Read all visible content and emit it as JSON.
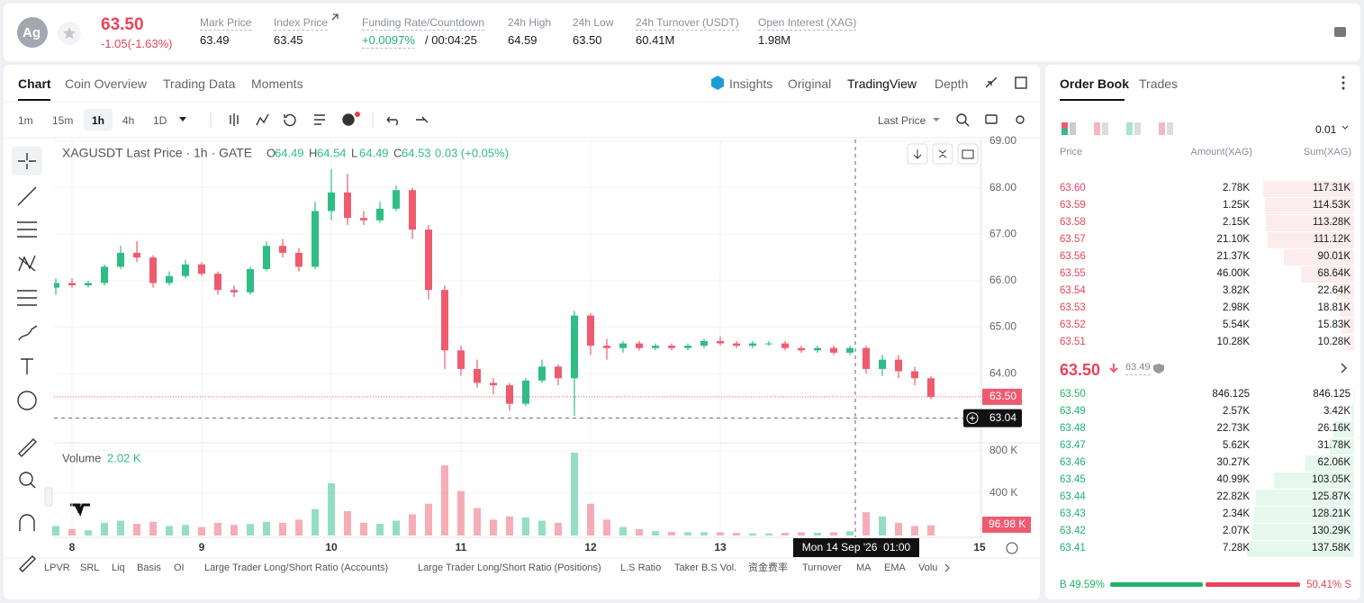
{
  "header": {
    "symbol_icon": "Ag",
    "price": "63.50",
    "change": "-1.05(-1.63%)",
    "stats": [
      {
        "label": "Mark Price",
        "value": "63.49"
      },
      {
        "label": "Index Price",
        "value": "63.45"
      },
      {
        "label": "Funding Rate/Countdown",
        "value": "+0.0097%",
        "extra": "/ 00:04:25"
      },
      {
        "label": "24h High",
        "value": "64.59"
      },
      {
        "label": "24h Low",
        "value": "63.50"
      },
      {
        "label": "24h Turnover (USDT)",
        "value": "60.41M"
      },
      {
        "label": "Open Interest (XAG)",
        "value": "1.98M"
      }
    ]
  },
  "tabs": [
    "Chart",
    "Coin Overview",
    "Trading Data",
    "Moments"
  ],
  "view_tabs": [
    "Insights",
    "Original",
    "TradingView",
    "Depth"
  ],
  "intervals": [
    "1m",
    "15m",
    "1h",
    "4h",
    "1D"
  ],
  "price_type": "Last Price",
  "chart_data": {
    "type": "candlestick",
    "title": "XAGUSDT Last Price · 1h · GATE",
    "legend": [
      {
        "key": "O",
        "value": "64.49"
      },
      {
        "key": "H",
        "value": "64.54"
      },
      {
        "key": "L",
        "value": "64.49"
      },
      {
        "key": "C",
        "value": "64.53"
      }
    ],
    "legend_change": "0.03 (+0.05%)",
    "up_color": "#2ebd85",
    "down_color": "#ee5b6f",
    "x": [
      "2026-09-07T21:00",
      "2026-09-08T00:00",
      "2026-09-08T03:00",
      "2026-09-08T06:00",
      "2026-09-08T09:00",
      "2026-09-08T12:00",
      "2026-09-08T15:00",
      "2026-09-08T18:00",
      "2026-09-08T21:00",
      "2026-09-09T00:00",
      "2026-09-09T03:00",
      "2026-09-09T06:00",
      "2026-09-09T09:00",
      "2026-09-09T12:00",
      "2026-09-09T15:00",
      "2026-09-09T18:00",
      "2026-09-09T21:00",
      "2026-09-10T00:00",
      "2026-09-10T03:00",
      "2026-09-10T06:00",
      "2026-09-10T09:00",
      "2026-09-10T12:00",
      "2026-09-10T15:00",
      "2026-09-10T18:00",
      "2026-09-10T21:00",
      "2026-09-11T00:00",
      "2026-09-11T03:00",
      "2026-09-11T06:00",
      "2026-09-11T09:00",
      "2026-09-11T12:00",
      "2026-09-11T15:00",
      "2026-09-11T18:00",
      "2026-09-11T21:00",
      "2026-09-12T00:00",
      "2026-09-12T03:00",
      "2026-09-12T06:00",
      "2026-09-12T09:00",
      "2026-09-12T12:00",
      "2026-09-12T15:00",
      "2026-09-12T18:00",
      "2026-09-12T21:00",
      "2026-09-13T00:00",
      "2026-09-13T03:00",
      "2026-09-13T06:00",
      "2026-09-13T09:00",
      "2026-09-13T12:00",
      "2026-09-13T15:00",
      "2026-09-13T18:00",
      "2026-09-13T21:00",
      "2026-09-14T00:00",
      "2026-09-14T03:00",
      "2026-09-14T06:00",
      "2026-09-14T09:00",
      "2026-09-14T12:00",
      "2026-09-14T15:00"
    ],
    "candles": [
      [
        65.85,
        66.05,
        65.7,
        65.95
      ],
      [
        65.95,
        66.05,
        65.85,
        65.9
      ],
      [
        65.9,
        66.0,
        65.85,
        65.95
      ],
      [
        65.95,
        66.35,
        65.9,
        66.3
      ],
      [
        66.3,
        66.75,
        66.25,
        66.6
      ],
      [
        66.6,
        66.85,
        66.4,
        66.5
      ],
      [
        66.5,
        66.55,
        65.85,
        65.95
      ],
      [
        65.95,
        66.2,
        65.9,
        66.1
      ],
      [
        66.1,
        66.45,
        66.05,
        66.35
      ],
      [
        66.35,
        66.4,
        66.1,
        66.15
      ],
      [
        66.15,
        66.2,
        65.7,
        65.8
      ],
      [
        65.8,
        65.9,
        65.65,
        65.75
      ],
      [
        65.75,
        66.3,
        65.7,
        66.25
      ],
      [
        66.25,
        66.85,
        66.2,
        66.75
      ],
      [
        66.75,
        66.9,
        66.5,
        66.6
      ],
      [
        66.6,
        66.7,
        66.2,
        66.3
      ],
      [
        66.3,
        67.7,
        66.25,
        67.5
      ],
      [
        67.5,
        68.4,
        67.3,
        67.9
      ],
      [
        67.9,
        68.3,
        67.2,
        67.35
      ],
      [
        67.35,
        67.5,
        67.2,
        67.3
      ],
      [
        67.3,
        67.7,
        67.25,
        67.55
      ],
      [
        67.55,
        68.05,
        67.5,
        67.95
      ],
      [
        67.95,
        68.0,
        66.9,
        67.1
      ],
      [
        67.1,
        67.2,
        65.6,
        65.8
      ],
      [
        65.8,
        65.9,
        64.1,
        64.5
      ],
      [
        64.5,
        64.6,
        63.95,
        64.1
      ],
      [
        64.1,
        64.3,
        63.7,
        63.8
      ],
      [
        63.8,
        63.9,
        63.55,
        63.75
      ],
      [
        63.75,
        63.8,
        63.2,
        63.35
      ],
      [
        63.35,
        63.9,
        63.3,
        63.85
      ],
      [
        63.85,
        64.3,
        63.8,
        64.15
      ],
      [
        64.15,
        64.2,
        63.75,
        63.9
      ],
      [
        63.9,
        65.35,
        63.09,
        65.25
      ],
      [
        65.25,
        65.3,
        64.4,
        64.6
      ],
      [
        64.6,
        64.75,
        64.3,
        64.55
      ],
      [
        64.55,
        64.7,
        64.45,
        64.65
      ],
      [
        64.65,
        64.7,
        64.5,
        64.55
      ],
      [
        64.55,
        64.65,
        64.5,
        64.6
      ],
      [
        64.6,
        64.65,
        64.5,
        64.55
      ],
      [
        64.55,
        64.65,
        64.5,
        64.6
      ],
      [
        64.6,
        64.75,
        64.55,
        64.7
      ],
      [
        64.7,
        64.8,
        64.6,
        64.65
      ],
      [
        64.65,
        64.7,
        64.55,
        64.6
      ],
      [
        64.6,
        64.7,
        64.55,
        64.65
      ],
      [
        64.65,
        64.7,
        64.6,
        64.65
      ],
      [
        64.65,
        64.7,
        64.5,
        64.55
      ],
      [
        64.55,
        64.6,
        64.45,
        64.5
      ],
      [
        64.5,
        64.6,
        64.45,
        64.55
      ],
      [
        64.55,
        64.6,
        64.4,
        64.45
      ],
      [
        64.45,
        64.6,
        64.4,
        64.55
      ],
      [
        64.55,
        64.6,
        64.0,
        64.1
      ],
      [
        64.1,
        64.4,
        63.95,
        64.3
      ],
      [
        64.3,
        64.4,
        63.9,
        64.05
      ],
      [
        64.05,
        64.15,
        63.75,
        63.9
      ],
      [
        63.9,
        63.95,
        63.45,
        63.5
      ]
    ],
    "xlim": [
      "2026-09-07T20:40",
      "2026-09-15T00:20"
    ],
    "xticks": [
      {
        "value": "2026-09-08T00:00",
        "label": "8"
      },
      {
        "value": "2026-09-09T00:00",
        "label": "9"
      },
      {
        "value": "2026-09-10T00:00",
        "label": "10"
      },
      {
        "value": "2026-09-11T00:00",
        "label": "11"
      },
      {
        "value": "2026-09-12T00:00",
        "label": "12"
      },
      {
        "value": "2026-09-13T00:00",
        "label": "13"
      },
      {
        "value": "2026-09-15T00:00",
        "label": "15"
      }
    ],
    "ylim": [
      62.51,
      69.04
    ],
    "yticks": [
      {
        "value": 64,
        "label": "64.00"
      },
      {
        "value": 65,
        "label": "65.00"
      },
      {
        "value": 66,
        "label": "66.00"
      },
      {
        "value": 67,
        "label": "67.00"
      },
      {
        "value": 68,
        "label": "68.00"
      },
      {
        "value": 69,
        "label": "69.00"
      }
    ],
    "last_price_label": "63.50",
    "crosshair": {
      "price": {
        "value": 63.04,
        "label": "63.04"
      },
      "time": {
        "value": "2026-09-14T01:00",
        "label": "Mon 14 Sep '26  01:00"
      }
    },
    "volume": {
      "title": "Volume",
      "current": "2.02 K",
      "values": [
        90,
        60,
        50,
        120,
        140,
        110,
        130,
        90,
        100,
        80,
        120,
        100,
        110,
        130,
        120,
        150,
        250,
        493,
        230,
        120,
        110,
        140,
        200,
        300,
        663,
        420,
        260,
        150,
        180,
        170,
        140,
        120,
        783,
        300,
        150,
        80,
        60,
        40,
        35,
        30,
        30,
        30,
        25,
        20,
        20,
        25,
        30,
        25,
        30,
        40,
        220,
        180,
        120,
        90,
        96.98
      ],
      "last_label": "96.98 K",
      "ylim": [
        0,
        876
      ],
      "yticks": [
        {
          "value": 400,
          "label": "400 K"
        },
        {
          "value": 800,
          "label": "800 K"
        }
      ]
    }
  },
  "indicators": [
    "LPVR",
    "SRL",
    "Liq",
    "Basis",
    "OI",
    "Large Trader Long/Short Ratio (Accounts)",
    "Large Trader Long/Short Ratio (Positions)",
    "L.S Ratio",
    "Taker B.S Vol.",
    "资金费率",
    "Turnover",
    "MA",
    "EMA",
    "Volu"
  ],
  "order_book": {
    "tabs": [
      "Order Book",
      "Trades"
    ],
    "precision": "0.01",
    "columns": [
      "Price",
      "Amount(XAG)",
      "Sum(XAG)"
    ],
    "asks": [
      [
        "63.60",
        "2.78K",
        "117.31K"
      ],
      [
        "63.59",
        "1.25K",
        "114.53K"
      ],
      [
        "63.58",
        "2.15K",
        "113.28K"
      ],
      [
        "63.57",
        "21.10K",
        "111.12K"
      ],
      [
        "63.56",
        "21.37K",
        "90.01K"
      ],
      [
        "63.55",
        "46.00K",
        "68.64K"
      ],
      [
        "63.54",
        "3.82K",
        "22.64K"
      ],
      [
        "63.53",
        "2.98K",
        "18.81K"
      ],
      [
        "63.52",
        "5.54K",
        "15.83K"
      ],
      [
        "63.51",
        "10.28K",
        "10.28K"
      ]
    ],
    "last_price": "63.50",
    "mark_price": "63.49",
    "bids": [
      [
        "63.50",
        "846.125",
        "846.125"
      ],
      [
        "63.49",
        "2.57K",
        "3.42K"
      ],
      [
        "63.48",
        "22.73K",
        "26.16K"
      ],
      [
        "63.47",
        "5.62K",
        "31.78K"
      ],
      [
        "63.46",
        "30.27K",
        "62.06K"
      ],
      [
        "63.45",
        "40.99K",
        "103.05K"
      ],
      [
        "63.44",
        "22.82K",
        "125.87K"
      ],
      [
        "63.43",
        "2.34K",
        "128.21K"
      ],
      [
        "63.42",
        "2.07K",
        "130.29K"
      ],
      [
        "63.41",
        "7.28K",
        "137.58K"
      ]
    ],
    "buy_ratio": {
      "value": 49.59,
      "label": "B 49.59%"
    },
    "sell_ratio": {
      "value": 50.41,
      "label": "50.41% S"
    }
  }
}
